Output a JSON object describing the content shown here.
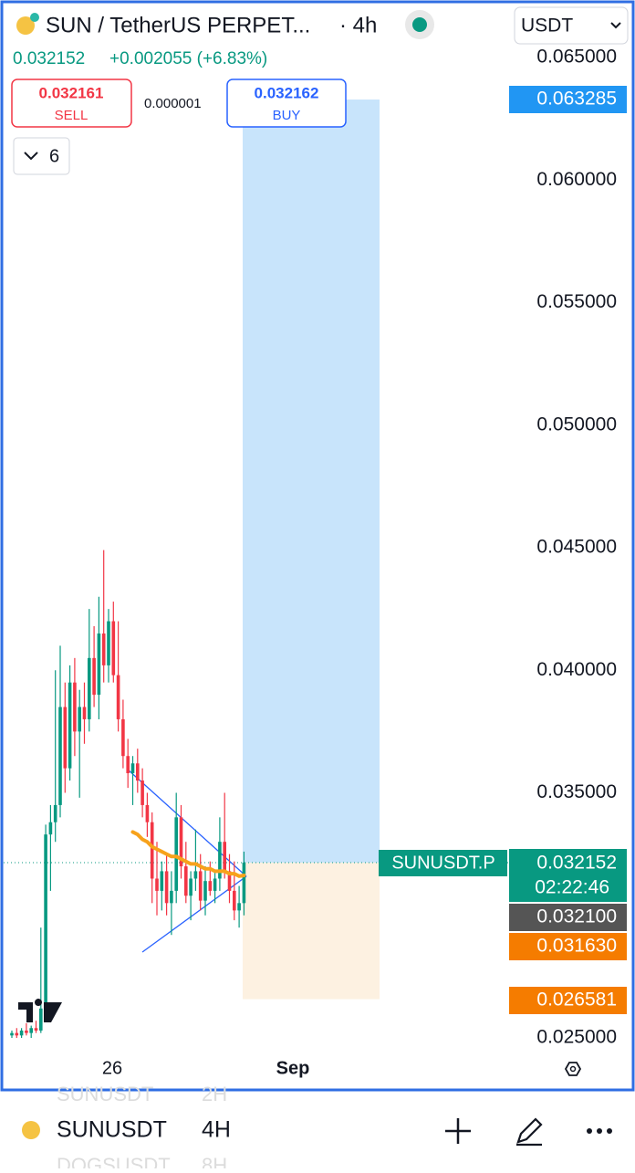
{
  "header": {
    "symbol": "SUN / TetherUS PERPET...",
    "interval": "· 4h",
    "currency": "USDT",
    "last": "0.032152",
    "change": "+0.002055 (+6.83%)"
  },
  "trade": {
    "sell_price": "0.032161",
    "sell": "SELL",
    "spread": "0.000001",
    "buy_price": "0.032162",
    "buy": "BUY"
  },
  "indicator_count": "6",
  "chart_data": {
    "type": "candlestick",
    "ylim": [
      0.025,
      0.065
    ],
    "yticks": [
      {
        "value": 0.065,
        "label": "0.065000"
      },
      {
        "value": 0.06,
        "label": "0.060000"
      },
      {
        "value": 0.055,
        "label": "0.055000"
      },
      {
        "value": 0.05,
        "label": "0.050000"
      },
      {
        "value": 0.045,
        "label": "0.045000"
      },
      {
        "value": 0.04,
        "label": "0.040000"
      },
      {
        "value": 0.035,
        "label": "0.035000"
      },
      {
        "value": 0.025,
        "label": "0.025000"
      }
    ],
    "xtick_labels": [
      "26",
      "Sep"
    ],
    "up_color": "#089981",
    "down_color": "#f23645",
    "open": [
      0.0251,
      0.0252,
      0.0251,
      0.0253,
      0.0252,
      0.0254,
      0.0253,
      0.0262,
      0.0333,
      0.0338,
      0.0345,
      0.0385,
      0.036,
      0.0395,
      0.0375,
      0.0385,
      0.038,
      0.0405,
      0.039,
      0.0415,
      0.0402,
      0.042,
      0.0398,
      0.038,
      0.0365,
      0.0358,
      0.0362,
      0.0355,
      0.0345,
      0.0338,
      0.0315,
      0.031,
      0.0318,
      0.0305,
      0.031,
      0.034,
      0.032,
      0.0308,
      0.0315,
      0.0318,
      0.0306,
      0.0314,
      0.031,
      0.0315,
      0.033,
      0.0318,
      0.031,
      0.0302,
      0.0305
    ],
    "high": [
      0.0253,
      0.0254,
      0.0254,
      0.0256,
      0.0255,
      0.0257,
      0.0295,
      0.0337,
      0.0345,
      0.04,
      0.041,
      0.0395,
      0.0402,
      0.0405,
      0.0392,
      0.0395,
      0.0425,
      0.0418,
      0.043,
      0.0449,
      0.0425,
      0.0428,
      0.042,
      0.0388,
      0.0372,
      0.0365,
      0.0368,
      0.036,
      0.035,
      0.0342,
      0.033,
      0.0322,
      0.0325,
      0.0318,
      0.035,
      0.0345,
      0.033,
      0.0318,
      0.0335,
      0.0325,
      0.032,
      0.0322,
      0.0318,
      0.034,
      0.035,
      0.0325,
      0.0322,
      0.0312,
      0.0326
    ],
    "low": [
      0.025,
      0.025,
      0.025,
      0.0251,
      0.025,
      0.0252,
      0.0252,
      0.026,
      0.031,
      0.033,
      0.034,
      0.035,
      0.0355,
      0.0365,
      0.0348,
      0.037,
      0.0375,
      0.0385,
      0.038,
      0.0395,
      0.0395,
      0.0395,
      0.0375,
      0.036,
      0.0352,
      0.0345,
      0.035,
      0.034,
      0.0332,
      0.0305,
      0.03,
      0.0302,
      0.03,
      0.0292,
      0.0305,
      0.0315,
      0.0305,
      0.0298,
      0.031,
      0.0302,
      0.03,
      0.0308,
      0.0305,
      0.031,
      0.0315,
      0.0305,
      0.0298,
      0.0295,
      0.03
    ],
    "close": [
      0.0252,
      0.0251,
      0.0253,
      0.0252,
      0.0254,
      0.0253,
      0.0262,
      0.0333,
      0.0338,
      0.0345,
      0.0385,
      0.036,
      0.0395,
      0.0375,
      0.0385,
      0.038,
      0.0405,
      0.039,
      0.0415,
      0.0402,
      0.042,
      0.0398,
      0.038,
      0.0365,
      0.0358,
      0.0362,
      0.0355,
      0.0345,
      0.0338,
      0.0315,
      0.031,
      0.0318,
      0.0305,
      0.031,
      0.034,
      0.032,
      0.0308,
      0.0315,
      0.0318,
      0.0306,
      0.0314,
      0.031,
      0.0315,
      0.033,
      0.0318,
      0.031,
      0.0302,
      0.0305,
      0.032152
    ],
    "ema": {
      "color": "#f7a21b",
      "label": "0.031630",
      "values": [
        null,
        null,
        null,
        null,
        null,
        null,
        null,
        null,
        null,
        null,
        null,
        null,
        null,
        null,
        null,
        null,
        null,
        null,
        null,
        null,
        null,
        null,
        null,
        null,
        null,
        0.0334,
        0.0333,
        0.0331,
        0.033,
        0.0328,
        0.0327,
        0.0326,
        0.0325,
        0.0324,
        0.0324,
        0.0323,
        0.0322,
        0.0321,
        0.0321,
        0.032,
        0.0319,
        0.0319,
        0.0318,
        0.0318,
        0.0318,
        0.0317,
        0.0317,
        0.0316,
        0.03163
      ]
    },
    "position": {
      "target": {
        "value": 0.063285,
        "label": "0.063285"
      },
      "entry": {
        "value": 0.032152,
        "label": "0.032152"
      },
      "stop": {
        "value": 0.026581,
        "label": "0.026581"
      }
    },
    "symbol_tag": "SUNUSDT.P",
    "countdown": "02:22:46",
    "prev_label": "0.032100"
  },
  "bottom_bar": {
    "symbol": "SUNUSDT",
    "interval": "4H",
    "above_symbol": "SUNUSDT",
    "above_interval": "2H",
    "below_symbol": "DOGSUSDT",
    "below_interval": "8H"
  }
}
